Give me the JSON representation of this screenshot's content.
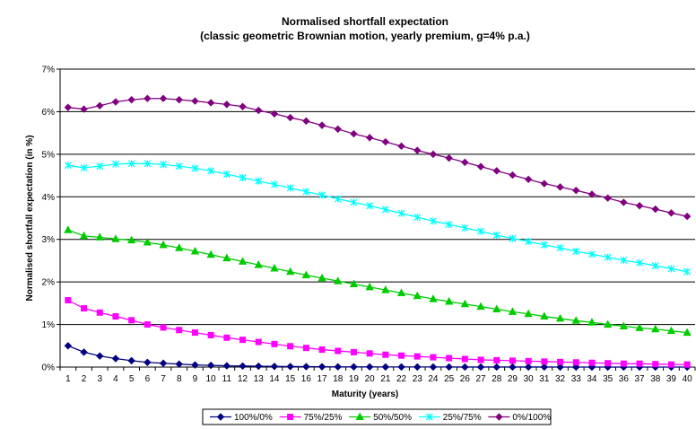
{
  "chart_data": {
    "type": "line",
    "title": "Normalised shortfall expectation",
    "subtitle": "(classic geometric Brownian motion, yearly premium, g=4% p.a.)",
    "xlabel": "Maturity (years)",
    "ylabel": "Normalised shortfall expectation (in %)",
    "x": [
      1,
      2,
      3,
      4,
      5,
      6,
      7,
      8,
      9,
      10,
      11,
      12,
      13,
      14,
      15,
      16,
      17,
      18,
      19,
      20,
      21,
      22,
      23,
      24,
      25,
      26,
      27,
      28,
      29,
      30,
      31,
      32,
      33,
      34,
      35,
      36,
      37,
      38,
      39,
      40
    ],
    "y_ticks": [
      "0%",
      "1%",
      "2%",
      "3%",
      "4%",
      "5%",
      "6%",
      "7%"
    ],
    "ylim": [
      0,
      7
    ],
    "grid": "horizontal",
    "legend_position": "bottom",
    "series": [
      {
        "name": "100%/0%",
        "color": "#000080",
        "marker": "diamond",
        "values": [
          0.5,
          0.35,
          0.26,
          0.2,
          0.15,
          0.11,
          0.09,
          0.07,
          0.05,
          0.04,
          0.03,
          0.025,
          0.02,
          0.015,
          0.012,
          0.01,
          0.008,
          0.006,
          0.005,
          0.004,
          0.003,
          0.003,
          0.002,
          0.002,
          0.002,
          0.001,
          0.001,
          0.001,
          0.001,
          0.001,
          0.001,
          0.0,
          0.0,
          0.0,
          0.0,
          0.0,
          0.0,
          0.0,
          0.0,
          0.0
        ]
      },
      {
        "name": "75%/25%",
        "color": "#FF00FF",
        "marker": "square",
        "values": [
          1.57,
          1.38,
          1.28,
          1.19,
          1.1,
          1.0,
          0.93,
          0.87,
          0.81,
          0.75,
          0.69,
          0.64,
          0.59,
          0.54,
          0.49,
          0.45,
          0.41,
          0.38,
          0.35,
          0.32,
          0.29,
          0.27,
          0.25,
          0.23,
          0.21,
          0.19,
          0.17,
          0.16,
          0.15,
          0.14,
          0.13,
          0.12,
          0.11,
          0.1,
          0.09,
          0.08,
          0.08,
          0.07,
          0.06,
          0.06
        ]
      },
      {
        "name": "50%/50%",
        "color": "#00CC00",
        "marker": "triangle",
        "values": [
          3.22,
          3.08,
          3.05,
          3.01,
          2.98,
          2.93,
          2.87,
          2.8,
          2.72,
          2.64,
          2.56,
          2.48,
          2.4,
          2.32,
          2.24,
          2.16,
          2.09,
          2.02,
          1.95,
          1.88,
          1.81,
          1.74,
          1.67,
          1.6,
          1.54,
          1.48,
          1.42,
          1.36,
          1.3,
          1.25,
          1.19,
          1.14,
          1.09,
          1.05,
          1.0,
          0.96,
          0.92,
          0.89,
          0.85,
          0.81
        ]
      },
      {
        "name": "25%/75%",
        "color": "#00FFFF",
        "marker": "star",
        "values": [
          4.74,
          4.68,
          4.72,
          4.77,
          4.78,
          4.78,
          4.76,
          4.72,
          4.67,
          4.61,
          4.53,
          4.45,
          4.37,
          4.29,
          4.21,
          4.12,
          4.04,
          3.95,
          3.87,
          3.79,
          3.7,
          3.61,
          3.52,
          3.43,
          3.35,
          3.27,
          3.19,
          3.1,
          3.02,
          2.95,
          2.87,
          2.8,
          2.72,
          2.65,
          2.58,
          2.51,
          2.45,
          2.38,
          2.31,
          2.24
        ]
      },
      {
        "name": "0%/100%",
        "color": "#800080",
        "marker": "diamond",
        "values": [
          6.1,
          6.06,
          6.14,
          6.23,
          6.28,
          6.31,
          6.31,
          6.28,
          6.25,
          6.21,
          6.17,
          6.12,
          6.03,
          5.95,
          5.86,
          5.78,
          5.68,
          5.59,
          5.48,
          5.39,
          5.29,
          5.19,
          5.09,
          5.0,
          4.91,
          4.81,
          4.71,
          4.61,
          4.51,
          4.41,
          4.31,
          4.23,
          4.15,
          4.06,
          3.97,
          3.87,
          3.79,
          3.71,
          3.62,
          3.54
        ]
      }
    ]
  }
}
